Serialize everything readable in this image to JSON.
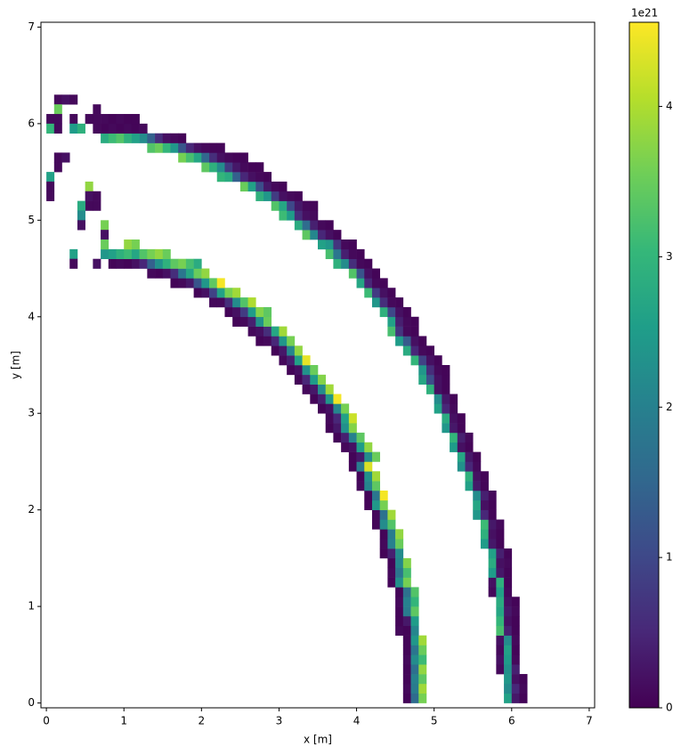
{
  "chart_data": {
    "type": "heatmap",
    "xlabel": "x [m]",
    "ylabel": "y [m]",
    "xlim": [
      -0.07,
      7.07
    ],
    "ylim": [
      -0.05,
      7.05
    ],
    "xticks": [
      0,
      1,
      2,
      3,
      4,
      5,
      6,
      7
    ],
    "yticks": [
      0,
      1,
      2,
      3,
      4,
      5,
      6,
      7
    ],
    "colormap": "viridis",
    "colorbar": {
      "clim": [
        0,
        4.56
      ],
      "ticks": [
        0,
        1,
        2,
        3,
        4
      ],
      "offset_label": "1e21"
    },
    "cells": [
      {
        "y": 0.0,
        "x0": 5.9,
        "values": [
          2.6,
          0.3,
          0.05
        ]
      },
      {
        "y": 0.1,
        "x0": 5.9,
        "values": [
          2.2,
          0.5,
          0.1
        ]
      },
      {
        "y": 0.2,
        "x0": 5.9,
        "values": [
          2.4,
          0.2,
          0.05
        ]
      },
      {
        "y": 0.3,
        "x0": 5.8,
        "values": [
          0.1,
          2.3,
          0.4
        ]
      },
      {
        "y": 0.4,
        "x0": 5.8,
        "values": [
          0.2,
          2.5,
          0.1
        ]
      },
      {
        "y": 0.5,
        "x0": 5.8,
        "values": [
          0.1,
          2.6,
          0.05
        ]
      },
      {
        "y": 0.6,
        "x0": 5.8,
        "values": [
          0.2,
          2.2,
          0.1
        ]
      },
      {
        "y": 0.7,
        "x0": 5.8,
        "values": [
          3.2,
          0.4,
          0.05
        ]
      },
      {
        "y": 0.8,
        "x0": 5.8,
        "values": [
          3.0,
          0.2,
          0.05
        ]
      },
      {
        "y": 0.9,
        "x0": 5.8,
        "values": [
          2.7,
          0.3,
          0.1
        ]
      },
      {
        "y": 1.0,
        "x0": 5.8,
        "values": [
          2.8,
          0.2,
          0.05
        ]
      },
      {
        "y": 1.1,
        "x0": 5.7,
        "values": [
          0.1,
          2.6,
          0.1
        ]
      },
      {
        "y": 1.2,
        "x0": 5.7,
        "values": [
          0.2,
          2.9,
          0.05
        ]
      },
      {
        "y": 1.3,
        "x0": 5.7,
        "values": [
          2.5,
          0.3,
          0.05
        ]
      },
      {
        "y": 1.4,
        "x0": 5.7,
        "values": [
          2.8,
          0.2,
          0.1
        ]
      },
      {
        "y": 1.5,
        "x0": 5.7,
        "values": [
          2.6,
          0.4,
          0.05
        ]
      },
      {
        "y": 1.6,
        "x0": 5.6,
        "values": [
          2.5,
          0.3,
          0.05
        ]
      },
      {
        "y": 1.7,
        "x0": 5.6,
        "values": [
          2.9,
          0.2,
          0.05
        ]
      },
      {
        "y": 1.8,
        "x0": 5.6,
        "values": [
          3.1,
          0.3,
          0.1
        ]
      },
      {
        "y": 1.9,
        "x0": 5.5,
        "values": [
          2.4,
          0.5,
          0.05
        ]
      },
      {
        "y": 2.0,
        "x0": 5.5,
        "values": [
          2.7,
          0.2,
          0.05
        ]
      },
      {
        "y": 2.1,
        "x0": 5.5,
        "values": [
          2.2,
          0.4,
          0.1
        ]
      },
      {
        "y": 2.2,
        "x0": 5.4,
        "values": [
          2.6,
          0.3,
          0.05
        ]
      },
      {
        "y": 2.3,
        "x0": 5.4,
        "values": [
          2.9,
          0.2,
          0.05
        ]
      },
      {
        "y": 2.4,
        "x0": 5.3,
        "values": [
          2.3,
          0.5,
          0.1
        ]
      },
      {
        "y": 2.5,
        "x0": 5.3,
        "values": [
          2.7,
          0.3,
          0.05
        ]
      },
      {
        "y": 2.6,
        "x0": 5.2,
        "values": [
          2.5,
          0.2,
          0.05
        ]
      },
      {
        "y": 2.7,
        "x0": 5.2,
        "values": [
          3.0,
          0.4,
          0.1
        ]
      },
      {
        "y": 2.8,
        "x0": 5.1,
        "values": [
          2.4,
          0.3,
          0.05
        ]
      },
      {
        "y": 2.9,
        "x0": 5.1,
        "values": [
          2.8,
          0.2,
          0.05
        ]
      },
      {
        "y": 3.0,
        "x0": 5.0,
        "values": [
          2.6,
          0.5,
          0.1
        ]
      },
      {
        "y": 3.1,
        "x0": 5.0,
        "values": [
          2.2,
          0.3,
          0.05
        ]
      },
      {
        "y": 3.2,
        "x0": 4.9,
        "values": [
          2.9,
          0.2,
          0.05
        ]
      },
      {
        "y": 3.3,
        "x0": 4.8,
        "values": [
          2.7,
          1.1,
          0.2,
          0.05
        ]
      },
      {
        "y": 3.4,
        "x0": 4.8,
        "values": [
          2.4,
          0.6,
          0.1,
          0.05
        ]
      },
      {
        "y": 3.5,
        "x0": 4.7,
        "values": [
          3.0,
          0.9,
          0.2,
          0.05
        ]
      },
      {
        "y": 3.6,
        "x0": 4.6,
        "values": [
          2.8,
          0.5,
          0.1,
          0.05
        ]
      },
      {
        "y": 3.7,
        "x0": 4.5,
        "values": [
          2.5,
          1.3,
          0.2,
          0.05
        ]
      },
      {
        "y": 3.8,
        "x0": 4.4,
        "values": [
          3.2,
          0.7,
          0.1,
          0.05
        ]
      },
      {
        "y": 3.9,
        "x0": 4.4,
        "values": [
          2.6,
          0.4,
          0.1,
          0.05
        ]
      },
      {
        "y": 4.0,
        "x0": 4.3,
        "values": [
          2.9,
          1.0,
          0.2,
          0.05
        ]
      },
      {
        "y": 4.1,
        "x0": 4.2,
        "values": [
          2.4,
          0.6,
          0.1,
          0.05
        ]
      },
      {
        "y": 4.2,
        "x0": 4.1,
        "values": [
          3.1,
          0.8,
          0.2,
          0.05
        ]
      },
      {
        "y": 4.3,
        "x0": 4.0,
        "values": [
          2.7,
          0.5,
          0.1,
          0.05
        ]
      },
      {
        "y": 4.4,
        "x0": 3.9,
        "values": [
          3.3,
          1.2,
          0.2,
          0.05
        ]
      },
      {
        "y": 4.5,
        "x0": 3.7,
        "values": [
          2.9,
          2.2,
          0.6,
          0.1,
          0.05
        ]
      },
      {
        "y": 4.6,
        "x0": 3.6,
        "values": [
          3.2,
          1.8,
          0.4,
          0.1,
          0.05
        ]
      },
      {
        "y": 4.7,
        "x0": 3.5,
        "values": [
          2.6,
          2.4,
          0.7,
          0.1,
          0.05
        ]
      },
      {
        "y": 4.8,
        "x0": 3.3,
        "values": [
          3.4,
          2.1,
          0.5,
          0.2,
          0.05
        ]
      },
      {
        "y": 4.9,
        "x0": 3.2,
        "values": [
          2.8,
          1.6,
          0.4,
          0.1,
          0.05
        ]
      },
      {
        "y": 5.0,
        "x0": 3.0,
        "values": [
          3.1,
          2.5,
          0.6,
          0.2,
          0.1
        ]
      },
      {
        "y": 5.1,
        "x0": 2.9,
        "values": [
          3.3,
          2.7,
          1.0,
          0.3,
          0.1,
          0.05
        ]
      },
      {
        "y": 5.2,
        "x0": 2.7,
        "values": [
          2.9,
          2.4,
          0.8,
          0.2,
          0.1,
          0.05
        ]
      },
      {
        "y": 5.3,
        "x0": 2.5,
        "values": [
          3.5,
          2.6,
          1.1,
          0.3,
          0.1,
          0.05
        ]
      },
      {
        "y": 5.4,
        "x0": 2.2,
        "values": [
          3.0,
          2.8,
          1.4,
          0.5,
          0.2,
          0.1,
          0.05
        ]
      },
      {
        "y": 5.5,
        "x0": 2.0,
        "values": [
          3.4,
          2.9,
          2.2,
          0.8,
          0.3,
          0.1,
          0.05,
          0.05
        ]
      },
      {
        "y": 5.6,
        "x0": 1.7,
        "values": [
          3.6,
          3.2,
          2.7,
          1.5,
          0.6,
          0.2,
          0.1,
          0.05,
          0.05
        ]
      },
      {
        "y": 5.7,
        "x0": 1.3,
        "values": [
          3.3,
          3.5,
          3.0,
          2.4,
          1.2,
          0.5,
          0.2,
          0.1,
          0.05,
          0.05
        ]
      },
      {
        "y": 5.8,
        "x0": 0.7,
        "values": [
          2.8,
          3.1,
          3.3,
          2.9,
          2.6,
          2.2,
          1.4,
          0.6,
          0.2,
          0.1,
          0.05
        ]
      },
      {
        "y": 5.9,
        "x0": 0.6,
        "values": [
          0.1,
          0.05,
          0.1,
          0.05,
          0.1,
          0.05,
          0.1
        ]
      },
      {
        "y": 6.0,
        "x0": 0.7,
        "values": [
          0.1,
          0.05,
          0.1,
          0.05,
          0.05
        ]
      },
      {
        "y": 0.0,
        "x0": 4.6,
        "values": [
          0.05,
          1.6,
          3.6
        ]
      },
      {
        "y": 0.1,
        "x0": 4.6,
        "values": [
          0.1,
          1.9,
          3.9
        ]
      },
      {
        "y": 0.2,
        "x0": 4.6,
        "values": [
          0.05,
          2.0,
          3.4
        ]
      },
      {
        "y": 0.3,
        "x0": 4.6,
        "values": [
          0.05,
          1.7,
          3.8
        ]
      },
      {
        "y": 0.4,
        "x0": 4.6,
        "values": [
          0.1,
          2.2,
          3.1
        ]
      },
      {
        "y": 0.5,
        "x0": 4.6,
        "values": [
          0.05,
          1.8,
          3.5
        ]
      },
      {
        "y": 0.6,
        "x0": 4.6,
        "values": [
          0.05,
          2.4,
          3.9
        ]
      },
      {
        "y": 0.7,
        "x0": 4.5,
        "values": [
          0.1,
          0.05,
          2.1
        ]
      },
      {
        "y": 0.8,
        "x0": 4.5,
        "values": [
          0.05,
          0.3,
          2.5
        ]
      },
      {
        "y": 0.9,
        "x0": 4.5,
        "values": [
          0.05,
          1.9,
          3.4
        ]
      },
      {
        "y": 1.0,
        "x0": 4.5,
        "values": [
          0.1,
          2.0,
          3.0
        ]
      },
      {
        "y": 1.1,
        "x0": 4.5,
        "values": [
          0.05,
          1.7,
          3.3
        ]
      },
      {
        "y": 1.2,
        "x0": 4.4,
        "values": [
          0.05,
          2.3,
          3.6
        ]
      },
      {
        "y": 1.3,
        "x0": 4.4,
        "values": [
          0.1,
          1.8,
          3.2
        ]
      },
      {
        "y": 1.4,
        "x0": 4.4,
        "values": [
          0.05,
          2.1,
          3.7
        ]
      },
      {
        "y": 1.5,
        "x0": 4.3,
        "values": [
          0.05,
          0.4,
          2.2
        ]
      },
      {
        "y": 1.6,
        "x0": 4.3,
        "values": [
          0.1,
          2.0,
          3.5
        ]
      },
      {
        "y": 1.7,
        "x0": 4.3,
        "values": [
          0.05,
          1.9,
          3.8
        ]
      },
      {
        "y": 1.8,
        "x0": 4.2,
        "values": [
          0.05,
          2.2,
          3.3
        ]
      },
      {
        "y": 1.9,
        "x0": 4.2,
        "values": [
          0.1,
          1.7,
          3.9
        ]
      },
      {
        "y": 2.0,
        "x0": 4.1,
        "values": [
          0.05,
          2.4,
          3.6
        ]
      },
      {
        "y": 2.1,
        "x0": 4.1,
        "values": [
          0.05,
          1.8,
          4.5
        ]
      },
      {
        "y": 2.2,
        "x0": 4.0,
        "values": [
          0.1,
          2.1,
          3.4
        ]
      },
      {
        "y": 2.3,
        "x0": 4.0,
        "values": [
          0.05,
          2.3,
          3.9
        ]
      },
      {
        "y": 2.4,
        "x0": 3.9,
        "values": [
          0.05,
          1.9,
          4.3
        ]
      },
      {
        "y": 2.5,
        "x0": 3.9,
        "values": [
          0.05,
          0.3,
          2.2,
          3.5
        ]
      },
      {
        "y": 2.6,
        "x0": 3.8,
        "values": [
          0.1,
          0.2,
          2.5,
          3.8
        ]
      },
      {
        "y": 2.7,
        "x0": 3.7,
        "values": [
          0.05,
          0.4,
          2.0,
          3.4
        ]
      },
      {
        "y": 2.8,
        "x0": 3.6,
        "values": [
          0.05,
          0.3,
          2.3,
          3.7
        ]
      },
      {
        "y": 2.9,
        "x0": 3.6,
        "values": [
          0.1,
          0.5,
          2.6,
          4.2
        ]
      },
      {
        "y": 3.0,
        "x0": 3.5,
        "values": [
          0.05,
          0.2,
          2.1,
          3.6
        ]
      },
      {
        "y": 3.1,
        "x0": 3.4,
        "values": [
          0.05,
          0.4,
          2.4,
          4.5
        ]
      },
      {
        "y": 3.2,
        "x0": 3.3,
        "values": [
          0.1,
          0.3,
          2.2,
          3.9
        ]
      },
      {
        "y": 3.3,
        "x0": 3.2,
        "values": [
          0.05,
          0.5,
          2.5,
          3.7
        ]
      },
      {
        "y": 3.4,
        "x0": 3.1,
        "values": [
          0.05,
          0.2,
          2.3,
          3.5
        ]
      },
      {
        "y": 3.5,
        "x0": 3.0,
        "values": [
          0.1,
          0.4,
          2.6,
          4.4
        ]
      },
      {
        "y": 3.6,
        "x0": 2.9,
        "values": [
          0.05,
          0.3,
          2.1,
          3.8
        ]
      },
      {
        "y": 3.7,
        "x0": 2.7,
        "values": [
          0.05,
          0.1,
          0.5,
          2.4,
          3.6
        ]
      },
      {
        "y": 3.8,
        "x0": 2.6,
        "values": [
          0.1,
          0.2,
          0.6,
          2.7,
          3.9
        ]
      },
      {
        "y": 3.9,
        "x0": 2.4,
        "values": [
          0.05,
          0.1,
          0.4,
          2.3,
          3.5
        ]
      },
      {
        "y": 4.0,
        "x0": 2.3,
        "values": [
          0.05,
          0.2,
          0.8,
          2.5,
          3.7,
          3.4
        ]
      },
      {
        "y": 4.1,
        "x0": 2.1,
        "values": [
          0.1,
          0.1,
          0.6,
          2.2,
          3.3,
          4.0
        ]
      },
      {
        "y": 4.2,
        "x0": 1.9,
        "values": [
          0.05,
          0.2,
          0.9,
          2.6,
          3.6,
          3.9
        ]
      },
      {
        "y": 4.3,
        "x0": 1.6,
        "values": [
          0.05,
          0.1,
          0.3,
          1.2,
          2.4,
          3.4,
          4.5
        ]
      },
      {
        "y": 4.4,
        "x0": 1.3,
        "values": [
          0.1,
          0.05,
          0.2,
          0.6,
          1.8,
          2.7,
          3.5,
          3.8
        ]
      },
      {
        "y": 4.5,
        "x0": 0.8,
        "values": [
          0.05,
          0.1,
          0.05,
          0.2,
          0.5,
          1.4,
          2.3,
          2.9,
          3.4,
          3.6,
          3.2,
          2.8
        ]
      },
      {
        "y": 4.6,
        "x0": 0.7,
        "values": [
          2.4,
          2.6,
          2.9,
          3.1,
          2.7,
          3.3,
          3.6,
          3.8,
          3.5
        ]
      },
      {
        "y": 4.7,
        "x0": 1.0,
        "values": [
          3.8,
          3.6
        ]
      },
      {
        "y": 6.2,
        "x0": 0.1,
        "values": [
          0.1,
          0.2,
          0.1
        ]
      },
      {
        "y": 6.1,
        "x0": 0.1,
        "values": [
          3.5
        ]
      },
      {
        "y": 6.1,
        "x0": 0.6,
        "values": [
          0.1
        ]
      },
      {
        "y": 6.0,
        "x0": 0.0,
        "values": [
          0.1,
          0.1
        ]
      },
      {
        "y": 6.0,
        "x0": 0.3,
        "values": [
          0.1
        ]
      },
      {
        "y": 6.0,
        "x0": 0.5,
        "values": [
          0.1,
          0.1
        ]
      },
      {
        "y": 5.9,
        "x0": 0.0,
        "values": [
          3.0,
          0.1
        ]
      },
      {
        "y": 5.9,
        "x0": 0.3,
        "values": [
          2.5,
          2.9
        ]
      },
      {
        "y": 5.6,
        "x0": 0.1,
        "values": [
          0.1,
          0.2
        ]
      },
      {
        "y": 5.5,
        "x0": 0.1,
        "values": [
          0.1
        ]
      },
      {
        "y": 5.4,
        "x0": 0.0,
        "values": [
          2.6
        ]
      },
      {
        "y": 5.3,
        "x0": 0.0,
        "values": [
          0.1
        ]
      },
      {
        "y": 5.2,
        "x0": 0.0,
        "values": [
          0.1
        ]
      },
      {
        "y": 5.3,
        "x0": 0.5,
        "values": [
          3.8
        ]
      },
      {
        "y": 5.2,
        "x0": 0.5,
        "values": [
          0.2,
          0.1
        ]
      },
      {
        "y": 5.1,
        "x0": 0.5,
        "values": [
          0.1,
          0.1
        ]
      },
      {
        "y": 5.1,
        "x0": 0.4,
        "values": [
          2.8
        ]
      },
      {
        "y": 5.0,
        "x0": 0.4,
        "values": [
          2.2
        ]
      },
      {
        "y": 4.9,
        "x0": 0.4,
        "values": [
          0.2
        ]
      },
      {
        "y": 4.9,
        "x0": 0.7,
        "values": [
          3.6
        ]
      },
      {
        "y": 4.8,
        "x0": 0.7,
        "values": [
          0.2
        ]
      },
      {
        "y": 4.7,
        "x0": 0.7,
        "values": [
          3.5
        ]
      },
      {
        "y": 4.6,
        "x0": 0.3,
        "values": [
          2.6
        ]
      },
      {
        "y": 4.5,
        "x0": 0.3,
        "values": [
          0.1
        ]
      },
      {
        "y": 4.5,
        "x0": 0.6,
        "values": [
          0.2
        ]
      }
    ]
  }
}
